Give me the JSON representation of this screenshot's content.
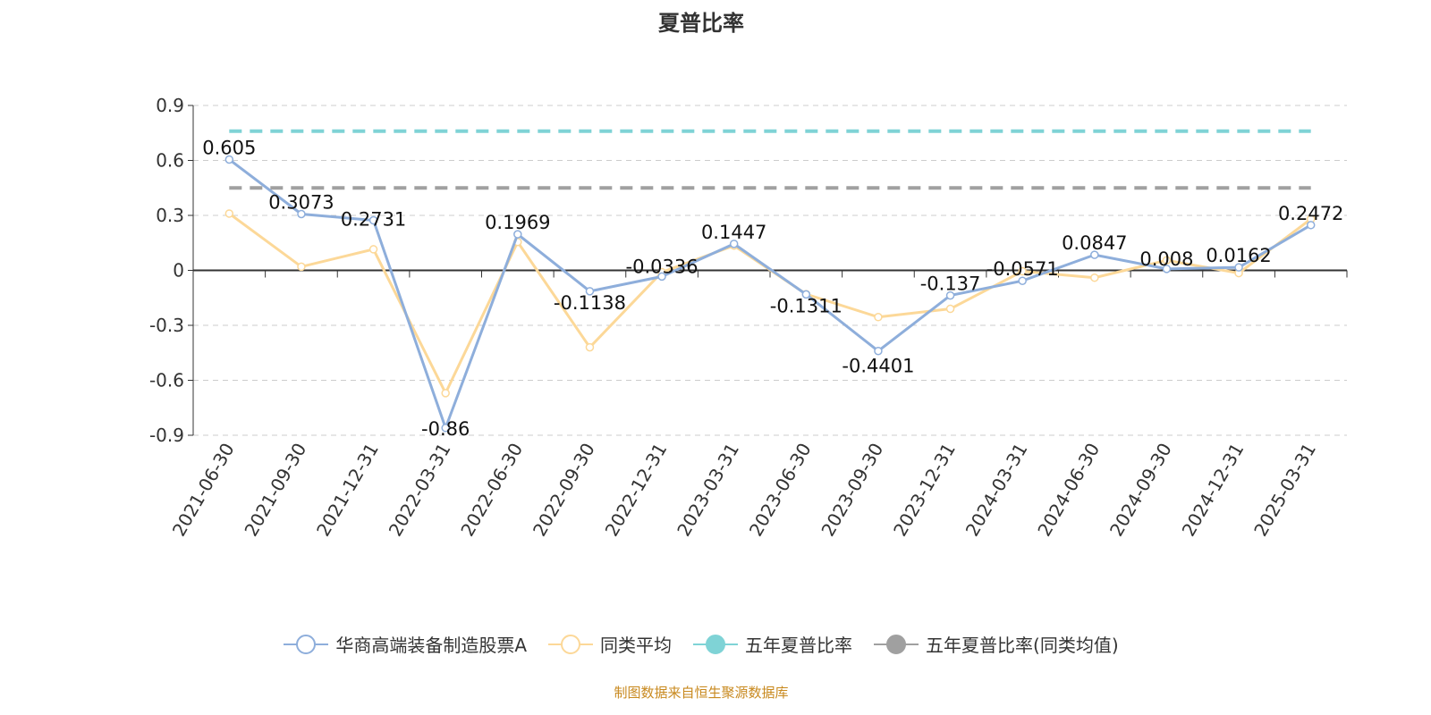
{
  "chart_data": {
    "type": "line",
    "title": "夏普比率",
    "categories": [
      "2021-06-30",
      "2021-09-30",
      "2021-12-31",
      "2022-03-31",
      "2022-06-30",
      "2022-09-30",
      "2022-12-31",
      "2023-03-31",
      "2023-06-30",
      "2023-09-30",
      "2023-12-31",
      "2024-03-31",
      "2024-06-30",
      "2024-09-30",
      "2024-12-31",
      "2025-03-31"
    ],
    "ylim": [
      -0.9,
      0.9
    ],
    "yticks": [
      "0.9",
      "0.6",
      "0.3",
      "0",
      "-0.3",
      "-0.6",
      "-0.9"
    ],
    "grid": true,
    "legend_position": "bottom",
    "series": [
      {
        "name": "华商高端装备制造股票A",
        "color": "#8eaedb",
        "values": [
          0.605,
          0.3073,
          0.2731,
          -0.86,
          0.1969,
          -0.1138,
          -0.0336,
          0.1447,
          -0.1311,
          -0.4401,
          -0.137,
          -0.0571,
          0.0847,
          0.008,
          0.0162,
          0.2472
        ],
        "labels": [
          "0.605",
          "0.3073",
          "0.2731",
          "-0.86",
          "0.1969",
          "-0.1138",
          "-0.0336",
          "0.1447",
          "-0.1311",
          "-0.4401",
          "-0.137",
          "-0.0571",
          "0.0847",
          "0.008",
          "0.0162",
          "0.2472"
        ]
      },
      {
        "name": "同类平均",
        "color": "#fcd898",
        "values": [
          0.31,
          0.02,
          0.115,
          -0.67,
          0.155,
          -0.42,
          -0.01,
          0.135,
          -0.13,
          -0.255,
          -0.21,
          -0.005,
          -0.04,
          0.055,
          -0.015,
          0.28
        ]
      },
      {
        "name": "五年夏普比率",
        "color": "#7fd3d6",
        "constant": 0.76
      },
      {
        "name": "五年夏普比率(同类均值)",
        "color": "#a0a0a0",
        "constant": 0.45
      }
    ]
  },
  "footer": "制图数据来自恒生聚源数据库"
}
